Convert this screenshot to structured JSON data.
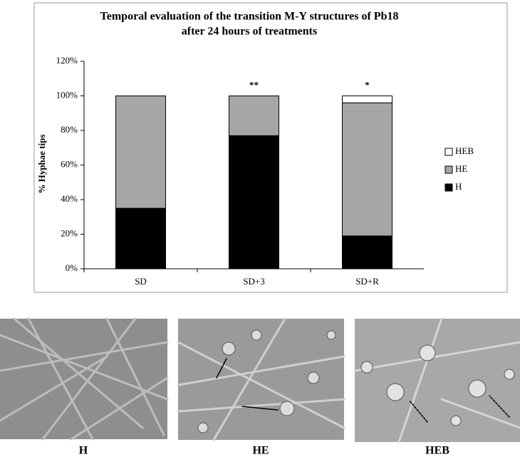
{
  "chart_data": {
    "type": "stacked_bar",
    "title": "Temporal evaluation of the transition M-Y structures of Pb18",
    "subtitle": "after 24 hours of treatments",
    "ylabel": "% Hyphae tips",
    "categories": [
      "SD",
      "SD+3",
      "SD+R"
    ],
    "series": [
      {
        "name": "H",
        "color": "#000000",
        "values": [
          35,
          77,
          19
        ]
      },
      {
        "name": "HE",
        "color": "#a6a6a6",
        "values": [
          65,
          23,
          77
        ]
      },
      {
        "name": "HEB",
        "color": "#ffffff",
        "values": [
          0,
          0,
          4
        ]
      }
    ],
    "annotations": [
      {
        "text": "**",
        "category": "SD+3"
      },
      {
        "text": "*",
        "category": "SD+R"
      }
    ],
    "ylim": [
      0,
      120
    ],
    "yticks": [
      {
        "value": 0,
        "label": "0%"
      },
      {
        "value": 20,
        "label": "20%"
      },
      {
        "value": 40,
        "label": "40%"
      },
      {
        "value": 60,
        "label": "60%"
      },
      {
        "value": 80,
        "label": "80%"
      },
      {
        "value": 100,
        "label": "100%"
      },
      {
        "value": 120,
        "label": "120%"
      }
    ],
    "grid": false,
    "legend": "right"
  },
  "micrographs": {
    "labels": [
      "H",
      "HE",
      "HEB"
    ]
  }
}
